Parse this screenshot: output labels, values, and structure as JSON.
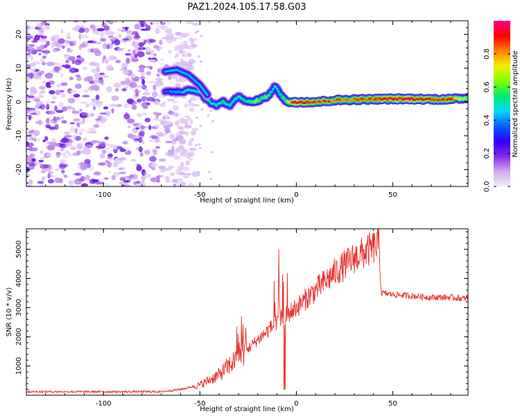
{
  "page": {
    "title": "PAZ1.2024.105.17.58.G03"
  },
  "colors": {
    "snr_line": "#e8302c",
    "colormap": [
      "#f4ecfb",
      "#cfa8f0",
      "#8a2be2",
      "#2a00ff",
      "#0060ff",
      "#00d8ff",
      "#00e870",
      "#80ff00",
      "#f0f000",
      "#ff8000",
      "#ff0000",
      "#ff0080"
    ]
  },
  "chart_data": [
    {
      "type": "heatmap",
      "title": "PAZ1.2024.105.17.58.G03",
      "xlabel": "Height of straight line (km)",
      "ylabel": "Frequency (Hz)",
      "xlim": [
        -140,
        89
      ],
      "ylim": [
        -25,
        24
      ],
      "x_ticks": [
        -100,
        -50,
        0,
        50
      ],
      "y_ticks": [
        -20,
        -10,
        0,
        10,
        20
      ],
      "colorbar": {
        "label": "Normalized spectral amplitude",
        "range": [
          0,
          1
        ],
        "ticks": [
          "0.0",
          "0.2",
          "0.4",
          "0.6",
          "0.8"
        ]
      },
      "ridge": {
        "note_upper_branch": [
          [
            -68,
            9
          ],
          [
            -62,
            9.5
          ],
          [
            -56,
            8
          ],
          [
            -50,
            5
          ],
          [
            -46,
            2
          ]
        ],
        "x": [
          -68,
          -60,
          -55,
          -50,
          -46,
          -42,
          -38,
          -34,
          -30,
          -26,
          -22,
          -18,
          -14,
          -11,
          -8,
          -5,
          -2,
          0,
          10,
          20,
          30,
          40,
          50,
          60,
          70,
          80,
          89
        ],
        "y": [
          3,
          3,
          3.5,
          3,
          0.5,
          -1,
          0,
          -1,
          2,
          0,
          0,
          1,
          2,
          5,
          2,
          0,
          0,
          0,
          0,
          0.5,
          0.7,
          0.8,
          0.9,
          0.9,
          0.8,
          0.8,
          1.2
        ],
        "amplitude": [
          0.35,
          0.4,
          0.45,
          0.5,
          0.5,
          0.45,
          0.5,
          0.45,
          0.5,
          0.5,
          0.6,
          0.6,
          0.55,
          0.45,
          0.5,
          0.6,
          0.95,
          1.0,
          0.9,
          0.85,
          0.85,
          0.9,
          0.95,
          0.95,
          0.9,
          0.9,
          0.6
        ]
      }
    },
    {
      "type": "line",
      "xlabel": "Height of straight line (km)",
      "ylabel": "SNR (10 * v/v)",
      "xlim": [
        -140,
        89
      ],
      "ylim": [
        0,
        5700
      ],
      "x_ticks": [
        -100,
        -50,
        0,
        50
      ],
      "y_ticks": [
        1000,
        2000,
        3000,
        4000,
        5000
      ],
      "envelope_x": [
        -140,
        -70,
        -60,
        -50,
        -40,
        -30,
        -20,
        -10,
        0,
        10,
        20,
        30,
        40,
        43,
        44,
        50,
        60,
        70,
        80,
        89
      ],
      "envelope_y": [
        120,
        120,
        200,
        350,
        700,
        1300,
        1900,
        2500,
        3000,
        3600,
        4200,
        4700,
        5050,
        5200,
        3500,
        3450,
        3400,
        3350,
        3350,
        3300
      ],
      "features": [
        {
          "x": -28,
          "y": 2700
        },
        {
          "x": -9,
          "y": 5000
        },
        {
          "x": -6,
          "y": 200
        }
      ]
    }
  ]
}
